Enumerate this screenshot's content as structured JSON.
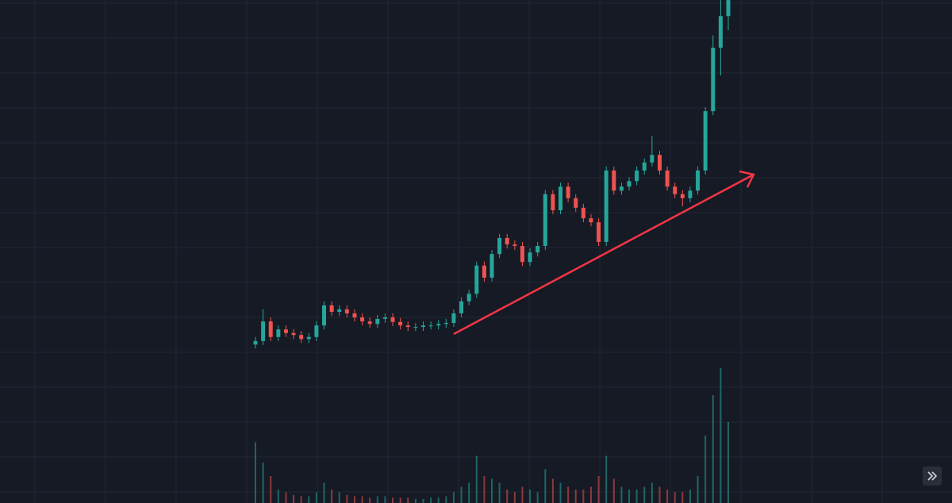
{
  "chart_data": {
    "type": "candlestick",
    "open": [
      31.5,
      32.2,
      36.1,
      33.0,
      34.5,
      33.8,
      33.4,
      32.6,
      33.0,
      35.3,
      39.3,
      38.0,
      38.5,
      37.7,
      36.9,
      36.1,
      35.6,
      36.6,
      36.9,
      36.0,
      35.3,
      35.0,
      35.0,
      35.3,
      35.3,
      35.6,
      35.8,
      37.7,
      40.1,
      41.6,
      47.2,
      44.8,
      49.5,
      52.7,
      51.4,
      51.1,
      47.9,
      49.8,
      51.1,
      61.4,
      58.2,
      62.9,
      60.6,
      58.7,
      56.6,
      55.8,
      51.9,
      66.1,
      62.1,
      62.9,
      64.0,
      66.1,
      67.7,
      69.2,
      66.1,
      62.9,
      61.4,
      60.6,
      62.1,
      66.1,
      77.9,
      90.5,
      96.8
    ],
    "high": [
      33.0,
      38.5,
      36.9,
      35.3,
      35.3,
      34.6,
      34.2,
      33.8,
      36.1,
      40.1,
      40.1,
      39.3,
      39.3,
      38.5,
      37.7,
      36.9,
      37.4,
      37.7,
      37.7,
      36.8,
      36.1,
      35.8,
      36.1,
      36.1,
      36.4,
      36.6,
      38.5,
      40.9,
      42.4,
      48.0,
      48.0,
      50.3,
      53.5,
      53.5,
      52.2,
      51.9,
      50.6,
      51.9,
      62.2,
      62.2,
      63.7,
      63.7,
      61.4,
      59.5,
      57.4,
      56.6,
      66.9,
      66.9,
      63.7,
      64.8,
      66.9,
      68.5,
      73.0,
      70.0,
      66.9,
      63.7,
      62.2,
      62.9,
      66.9,
      78.7,
      93.0,
      100,
      100
    ],
    "low": [
      30.7,
      31.4,
      32.2,
      32.2,
      33.0,
      32.6,
      31.8,
      31.8,
      32.2,
      34.5,
      37.2,
      37.2,
      36.9,
      36.1,
      35.3,
      34.8,
      34.8,
      35.8,
      35.2,
      34.5,
      34.2,
      34.2,
      34.2,
      34.5,
      34.5,
      34.8,
      35.0,
      36.9,
      39.3,
      40.8,
      44.0,
      44.0,
      48.7,
      50.6,
      50.3,
      47.1,
      47.1,
      49.0,
      50.3,
      57.4,
      57.4,
      59.8,
      57.9,
      55.8,
      55.0,
      51.1,
      51.1,
      61.3,
      61.3,
      62.1,
      63.2,
      65.3,
      66.9,
      65.3,
      62.1,
      60.6,
      59.0,
      59.8,
      61.3,
      65.3,
      77.1,
      85.0,
      94.0
    ],
    "close": [
      32.2,
      36.1,
      33.0,
      34.5,
      33.8,
      33.4,
      32.6,
      33.0,
      35.3,
      39.3,
      38.0,
      38.5,
      37.7,
      36.9,
      36.1,
      35.6,
      36.6,
      36.9,
      36.0,
      35.3,
      35.0,
      35.0,
      35.3,
      35.3,
      35.6,
      35.8,
      37.7,
      40.1,
      41.6,
      47.2,
      44.8,
      49.5,
      52.7,
      51.4,
      51.1,
      47.9,
      49.8,
      51.1,
      61.4,
      58.2,
      62.9,
      60.6,
      58.7,
      56.6,
      55.8,
      51.9,
      66.1,
      62.1,
      62.9,
      64.0,
      66.1,
      67.7,
      69.2,
      66.1,
      62.9,
      61.4,
      60.6,
      62.1,
      66.1,
      77.9,
      90.5,
      96.8,
      100
    ],
    "volume": [
      45,
      30,
      20,
      10,
      8,
      6,
      5,
      5,
      8,
      15,
      10,
      8,
      6,
      5,
      5,
      4,
      5,
      5,
      4,
      4,
      4,
      3,
      3,
      4,
      4,
      5,
      8,
      12,
      15,
      35,
      20,
      18,
      15,
      10,
      8,
      12,
      10,
      8,
      25,
      18,
      15,
      12,
      10,
      10,
      12,
      20,
      35,
      18,
      12,
      10,
      10,
      12,
      15,
      12,
      10,
      8,
      8,
      10,
      20,
      50,
      80,
      100,
      60
    ],
    "ylim": [
      0,
      100
    ],
    "volume_ylim": [
      0,
      100
    ],
    "up_color": "#26a69a",
    "down_color": "#ef5350"
  }
}
